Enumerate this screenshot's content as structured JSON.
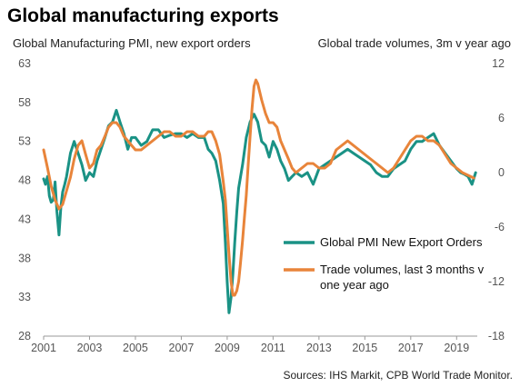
{
  "title": "Global manufacturing exports",
  "source": "Sources: IHS Markit,  CPB World Trade Monitor.",
  "chart_data": {
    "type": "line",
    "y_left_label": "Global Manufacturing PMI, new export orders",
    "y_right_label": "Global trade volumes,  3m v year ago",
    "x_ticks": [
      "2001",
      "2003",
      "2005",
      "2007",
      "2009",
      "2011",
      "2013",
      "2015",
      "2017",
      "2019"
    ],
    "x_range": [
      2001.0,
      2019.9
    ],
    "y_left_ticks": [
      "63",
      "58",
      "53",
      "48",
      "43",
      "38",
      "33",
      "28"
    ],
    "y_left_range": [
      28,
      63
    ],
    "y_right_ticks": [
      "12",
      "6",
      "0",
      "-6",
      "-12",
      "-18"
    ],
    "y_right_range": [
      -18,
      12
    ],
    "legend": [
      "Global PMI New Export Orders",
      "Trade volumes, last 3 months v",
      "one year ago"
    ],
    "series": [
      {
        "name": "Global PMI New Export Orders",
        "axis": "left",
        "color": "#1a9285",
        "x": [
          2001.0,
          2001.08,
          2001.17,
          2001.25,
          2001.33,
          2001.42,
          2001.5,
          2001.58,
          2001.67,
          2001.75,
          2001.83,
          2001.92,
          2002.0,
          2002.17,
          2002.33,
          2002.5,
          2002.67,
          2002.83,
          2003.0,
          2003.17,
          2003.33,
          2003.5,
          2003.67,
          2003.83,
          2004.0,
          2004.17,
          2004.33,
          2004.5,
          2004.67,
          2004.83,
          2005.0,
          2005.25,
          2005.5,
          2005.75,
          2006.0,
          2006.25,
          2006.5,
          2006.75,
          2007.0,
          2007.25,
          2007.5,
          2007.75,
          2008.0,
          2008.17,
          2008.33,
          2008.5,
          2008.67,
          2008.83,
          2008.92,
          2009.0,
          2009.08,
          2009.17,
          2009.25,
          2009.33,
          2009.42,
          2009.5,
          2009.67,
          2009.83,
          2010.0,
          2010.17,
          2010.33,
          2010.5,
          2010.67,
          2010.83,
          2011.0,
          2011.17,
          2011.33,
          2011.5,
          2011.67,
          2011.83,
          2012.0,
          2012.25,
          2012.5,
          2012.75,
          2013.0,
          2013.25,
          2013.5,
          2013.75,
          2014.0,
          2014.25,
          2014.5,
          2014.75,
          2015.0,
          2015.25,
          2015.5,
          2015.75,
          2016.0,
          2016.25,
          2016.5,
          2016.75,
          2017.0,
          2017.25,
          2017.5,
          2017.75,
          2018.0,
          2018.25,
          2018.5,
          2018.75,
          2019.0,
          2019.17,
          2019.33,
          2019.5,
          2019.67,
          2019.83
        ],
        "values": [
          48.2,
          47.5,
          48.5,
          46.0,
          45.2,
          45.5,
          47.8,
          44.0,
          41.0,
          44.5,
          46.5,
          47.5,
          48.5,
          51.5,
          53.0,
          51.5,
          50.0,
          48.0,
          49.0,
          48.5,
          50.5,
          52.0,
          53.5,
          55.0,
          55.5,
          57.0,
          55.5,
          54.0,
          52.0,
          53.5,
          53.5,
          52.5,
          53.0,
          54.5,
          54.5,
          53.5,
          53.8,
          54.0,
          54.0,
          53.5,
          54.0,
          53.5,
          53.5,
          52.0,
          51.5,
          50.5,
          48.0,
          45.0,
          40.0,
          35.0,
          31.0,
          33.0,
          36.0,
          40.0,
          44.0,
          47.0,
          50.0,
          53.5,
          55.5,
          56.5,
          55.5,
          53.0,
          52.5,
          51.0,
          53.0,
          52.0,
          50.5,
          49.5,
          48.0,
          48.5,
          49.0,
          48.5,
          49.0,
          47.5,
          49.5,
          50.0,
          50.5,
          51.0,
          51.5,
          52.0,
          51.5,
          51.0,
          50.5,
          50.0,
          49.0,
          48.5,
          48.5,
          49.5,
          50.0,
          50.5,
          52.0,
          53.0,
          53.0,
          53.5,
          54.0,
          52.5,
          51.5,
          50.5,
          49.5,
          49.0,
          48.8,
          48.5,
          47.5,
          49.0
        ]
      },
      {
        "name": "Trade volumes, last 3 months v one year ago",
        "axis": "right",
        "color": "#e8843a",
        "x": [
          2001.0,
          2001.17,
          2001.33,
          2001.5,
          2001.67,
          2001.83,
          2002.0,
          2002.17,
          2002.33,
          2002.5,
          2002.67,
          2002.83,
          2003.0,
          2003.17,
          2003.33,
          2003.5,
          2003.67,
          2003.83,
          2004.0,
          2004.17,
          2004.33,
          2004.5,
          2004.67,
          2004.83,
          2005.0,
          2005.25,
          2005.5,
          2005.75,
          2006.0,
          2006.25,
          2006.5,
          2006.75,
          2007.0,
          2007.25,
          2007.5,
          2007.75,
          2008.0,
          2008.17,
          2008.33,
          2008.5,
          2008.67,
          2008.75,
          2008.83,
          2008.92,
          2009.0,
          2009.08,
          2009.17,
          2009.25,
          2009.33,
          2009.42,
          2009.5,
          2009.58,
          2009.67,
          2009.75,
          2009.83,
          2009.92,
          2010.0,
          2010.08,
          2010.17,
          2010.25,
          2010.33,
          2010.5,
          2010.67,
          2010.83,
          2011.0,
          2011.17,
          2011.33,
          2011.5,
          2011.67,
          2011.83,
          2012.0,
          2012.25,
          2012.5,
          2012.75,
          2013.0,
          2013.25,
          2013.5,
          2013.75,
          2014.0,
          2014.25,
          2014.5,
          2014.75,
          2015.0,
          2015.25,
          2015.5,
          2015.75,
          2016.0,
          2016.25,
          2016.5,
          2016.75,
          2017.0,
          2017.25,
          2017.5,
          2017.75,
          2018.0,
          2018.25,
          2018.5,
          2018.75,
          2019.0,
          2019.25,
          2019.5,
          2019.75
        ],
        "values": [
          2.5,
          0.5,
          -1.5,
          -3.0,
          -4.0,
          -3.5,
          -2.0,
          -0.5,
          1.5,
          3.0,
          3.5,
          2.0,
          0.5,
          1.0,
          2.5,
          3.0,
          4.0,
          5.0,
          5.5,
          5.5,
          5.0,
          4.0,
          3.5,
          3.0,
          2.5,
          2.5,
          3.0,
          3.5,
          4.0,
          4.5,
          4.5,
          4.0,
          4.0,
          4.5,
          4.5,
          4.0,
          4.0,
          4.5,
          4.5,
          3.5,
          2.0,
          0.5,
          -1.0,
          -3.0,
          -6.0,
          -9.0,
          -12.0,
          -13.5,
          -13.5,
          -13.0,
          -12.0,
          -10.0,
          -7.5,
          -5.0,
          -2.5,
          1.0,
          4.0,
          7.0,
          9.5,
          10.2,
          9.8,
          8.0,
          6.5,
          5.5,
          5.5,
          5.0,
          3.5,
          2.5,
          1.5,
          0.5,
          0.0,
          0.5,
          1.0,
          1.0,
          0.5,
          0.5,
          1.0,
          2.5,
          3.0,
          3.5,
          3.0,
          2.5,
          2.0,
          1.5,
          1.0,
          0.5,
          0.0,
          0.5,
          1.5,
          2.5,
          3.5,
          4.0,
          4.0,
          3.5,
          3.5,
          3.0,
          2.0,
          1.0,
          0.5,
          0.0,
          -0.3,
          -0.6
        ]
      }
    ]
  }
}
